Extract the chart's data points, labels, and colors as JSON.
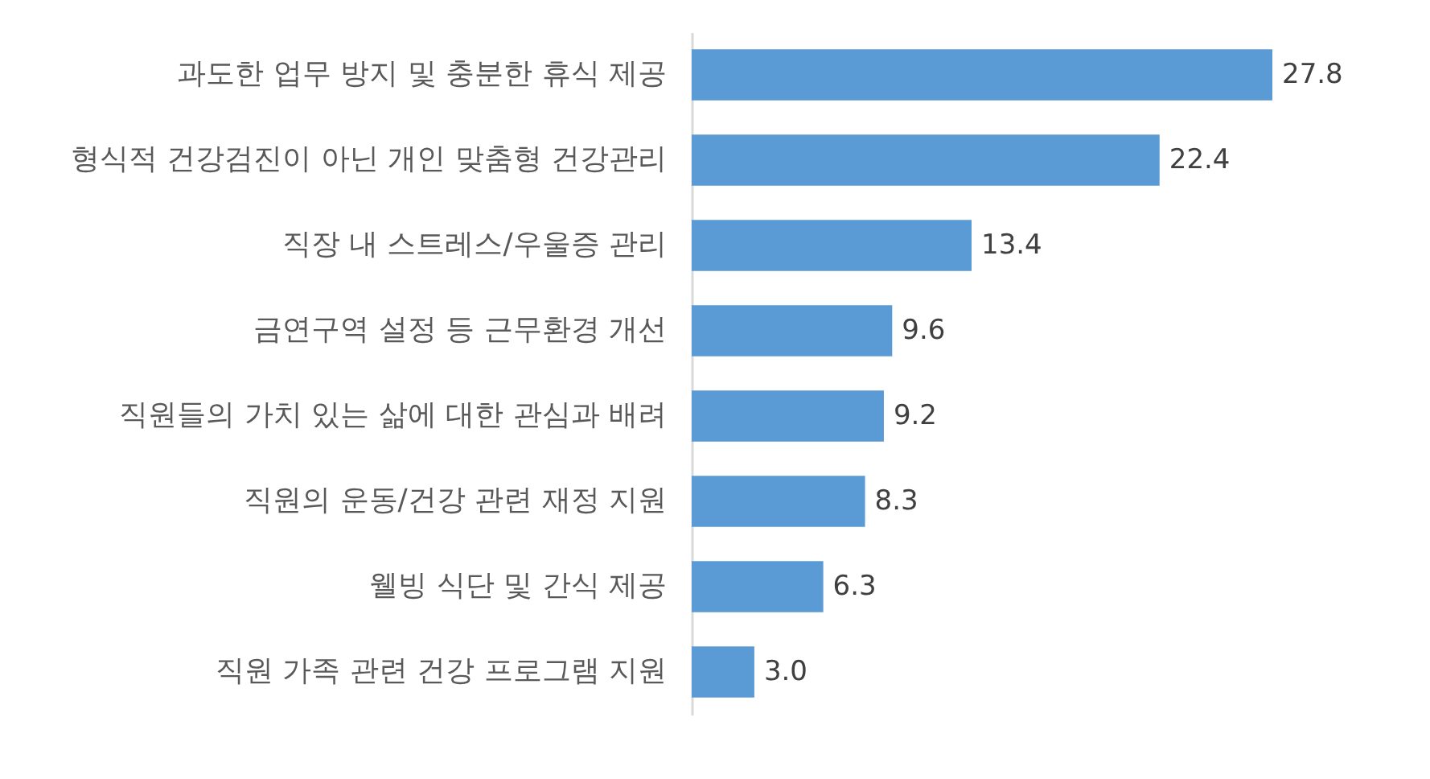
{
  "chart_data": {
    "type": "bar",
    "orientation": "horizontal",
    "categories": [
      "과도한 업무 방지 및 충분한 휴식 제공",
      "형식적 건강검진이 아닌 개인 맞춤형 건강관리",
      "직장 내 스트레스/우울증 관리",
      "금연구역 설정 등 근무환경 개선",
      "직원들의 가치 있는 삶에 대한 관심과 배려",
      "직원의 운동/건강 관련 재정 지원",
      "웰빙 식단 및 간식 제공",
      "직원 가족 관련 건강 프로그램 지원"
    ],
    "values": [
      27.8,
      22.4,
      13.4,
      9.6,
      9.2,
      8.3,
      6.3,
      3.0
    ],
    "value_labels": [
      "27.8",
      "22.4",
      "13.4",
      "9.6",
      "9.2",
      "8.3",
      "6.3",
      "3.0"
    ],
    "color": "#5b9bd5"
  }
}
